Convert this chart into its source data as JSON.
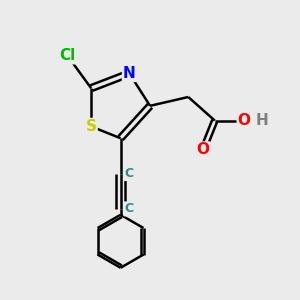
{
  "background_color": "#ebebeb",
  "atom_colors": {
    "C": "#000000",
    "C_alkyne": "#2e8b8b",
    "N": "#0000ff",
    "O": "#ff0000",
    "S": "#cccc00",
    "Cl": "#00bb00",
    "H": "#808080",
    "OH_O": "#ff0000"
  },
  "figsize": [
    3.0,
    3.0
  ],
  "dpi": 100
}
